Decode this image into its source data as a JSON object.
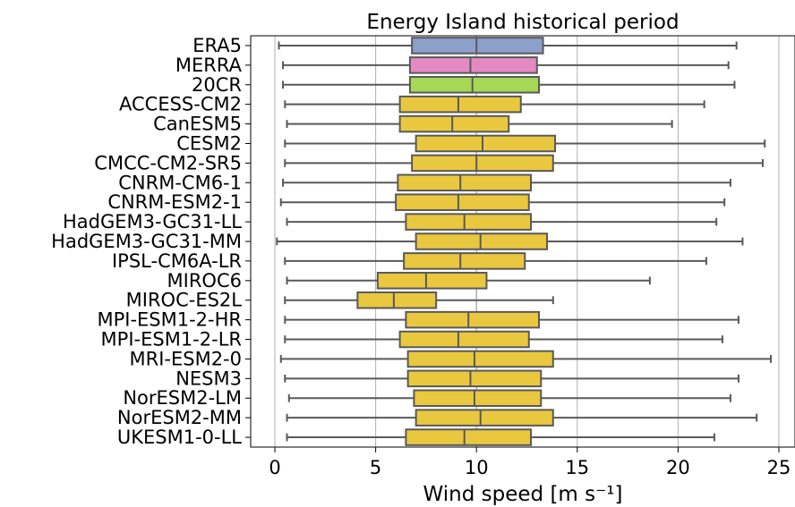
{
  "chart_data": {
    "type": "boxplot",
    "orientation": "horizontal",
    "title": "Energy Island historical period",
    "xlabel": "Wind speed [m s⁻¹]",
    "xlim": [
      -1.2,
      25.8
    ],
    "xticks": [
      0,
      5,
      10,
      15,
      20,
      25
    ],
    "grid": "vertical",
    "reference_line": 10,
    "colors": {
      "default": "#e9c83f",
      "ERA5": "#8d9fcb",
      "MERRA": "#e38ac3",
      "20CR": "#a6d855",
      "edge": "#595959",
      "grid": "#b0b0b0"
    },
    "series": [
      {
        "name": "ERA5",
        "whisker_low": 0.2,
        "q1": 6.8,
        "median": 10.0,
        "q3": 13.3,
        "whisker_high": 22.9
      },
      {
        "name": "MERRA",
        "whisker_low": 0.4,
        "q1": 6.7,
        "median": 9.7,
        "q3": 13.0,
        "whisker_high": 22.5
      },
      {
        "name": "20CR",
        "whisker_low": 0.4,
        "q1": 6.7,
        "median": 9.8,
        "q3": 13.1,
        "whisker_high": 22.8
      },
      {
        "name": "ACCESS-CM2",
        "whisker_low": 0.5,
        "q1": 6.2,
        "median": 9.1,
        "q3": 12.2,
        "whisker_high": 21.3
      },
      {
        "name": "CanESM5",
        "whisker_low": 0.6,
        "q1": 6.2,
        "median": 8.8,
        "q3": 11.6,
        "whisker_high": 19.7
      },
      {
        "name": "CESM2",
        "whisker_low": 0.5,
        "q1": 7.0,
        "median": 10.3,
        "q3": 13.9,
        "whisker_high": 24.3
      },
      {
        "name": "CMCC-CM2-SR5",
        "whisker_low": 0.5,
        "q1": 6.8,
        "median": 10.0,
        "q3": 13.8,
        "whisker_high": 24.2
      },
      {
        "name": "CNRM-CM6-1",
        "whisker_low": 0.4,
        "q1": 6.1,
        "median": 9.2,
        "q3": 12.7,
        "whisker_high": 22.6
      },
      {
        "name": "CNRM-ESM2-1",
        "whisker_low": 0.3,
        "q1": 6.0,
        "median": 9.1,
        "q3": 12.6,
        "whisker_high": 22.3
      },
      {
        "name": "HadGEM3-GC31-LL",
        "whisker_low": 0.6,
        "q1": 6.5,
        "median": 9.4,
        "q3": 12.7,
        "whisker_high": 21.9
      },
      {
        "name": "HadGEM3-GC31-MM",
        "whisker_low": 0.1,
        "q1": 7.0,
        "median": 10.2,
        "q3": 13.5,
        "whisker_high": 23.2
      },
      {
        "name": "IPSL-CM6A-LR",
        "whisker_low": 0.5,
        "q1": 6.4,
        "median": 9.2,
        "q3": 12.4,
        "whisker_high": 21.4
      },
      {
        "name": "MIROC6",
        "whisker_low": 0.6,
        "q1": 5.1,
        "median": 7.5,
        "q3": 10.5,
        "whisker_high": 18.6
      },
      {
        "name": "MIROC-ES2L",
        "whisker_low": 0.5,
        "q1": 4.1,
        "median": 5.9,
        "q3": 8.0,
        "whisker_high": 13.8
      },
      {
        "name": "MPI-ESM1-2-HR",
        "whisker_low": 0.5,
        "q1": 6.5,
        "median": 9.6,
        "q3": 13.1,
        "whisker_high": 23.0
      },
      {
        "name": "MPI-ESM1-2-LR",
        "whisker_low": 0.5,
        "q1": 6.2,
        "median": 9.1,
        "q3": 12.6,
        "whisker_high": 22.2
      },
      {
        "name": "MRI-ESM2-0",
        "whisker_low": 0.3,
        "q1": 6.6,
        "median": 9.9,
        "q3": 13.8,
        "whisker_high": 24.6
      },
      {
        "name": "NESM3",
        "whisker_low": 0.5,
        "q1": 6.6,
        "median": 9.7,
        "q3": 13.2,
        "whisker_high": 23.0
      },
      {
        "name": "NorESM2-LM",
        "whisker_low": 0.7,
        "q1": 6.9,
        "median": 9.9,
        "q3": 13.2,
        "whisker_high": 22.6
      },
      {
        "name": "NorESM2-MM",
        "whisker_low": 0.6,
        "q1": 7.0,
        "median": 10.2,
        "q3": 13.8,
        "whisker_high": 23.9
      },
      {
        "name": "UKESM1-0-LL",
        "whisker_low": 0.6,
        "q1": 6.5,
        "median": 9.4,
        "q3": 12.7,
        "whisker_high": 21.8
      }
    ]
  }
}
